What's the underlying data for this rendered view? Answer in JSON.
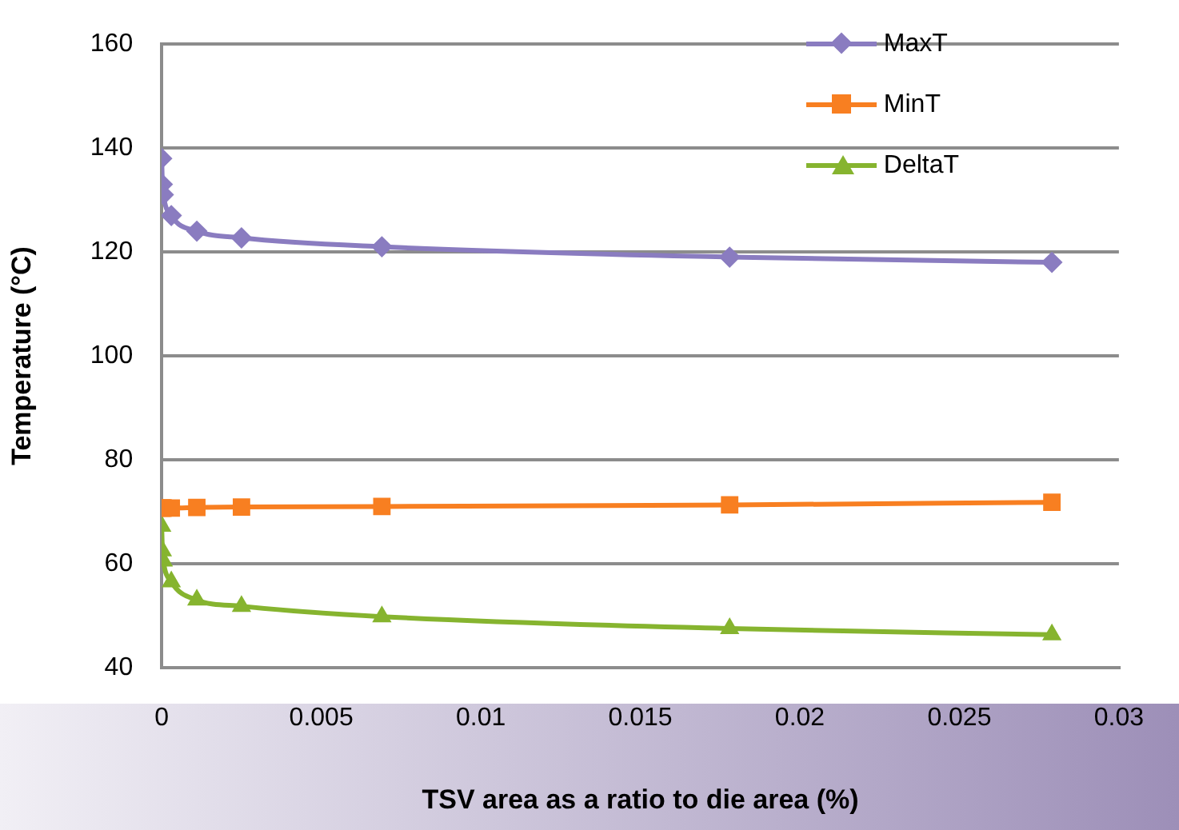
{
  "chart_data": {
    "type": "line",
    "xlabel": "TSV area as a ratio to die area (%)",
    "ylabel": "Temperature (°C)",
    "x": [
      0,
      2e-05,
      5e-05,
      0.0003,
      0.0011,
      0.0025,
      0.0069,
      0.0178,
      0.0279
    ],
    "series": [
      {
        "name": "MaxT",
        "color": "#8a7cc0",
        "marker": "diamond",
        "values": [
          138,
          133,
          131,
          127,
          124,
          122.7,
          121,
          119,
          118
        ]
      },
      {
        "name": "MinT",
        "color": "#f87f21",
        "marker": "square",
        "values": [
          70.7,
          70.7,
          70.7,
          70.7,
          70.8,
          70.9,
          71,
          71.3,
          71.8
        ]
      },
      {
        "name": "DeltaT",
        "color": "#86b42f",
        "marker": "triangle",
        "values": [
          67.2,
          62.5,
          60.5,
          56.5,
          53,
          51.8,
          49.8,
          47.5,
          46.3
        ]
      }
    ],
    "xlim": [
      0,
      0.03
    ],
    "xticks": [
      0,
      0.005,
      0.01,
      0.015,
      0.02,
      0.025,
      0.03
    ],
    "ylim": [
      40,
      160
    ],
    "yticks": [
      40,
      60,
      80,
      100,
      120,
      140,
      160
    ],
    "grid": "y",
    "legend": "top right"
  }
}
